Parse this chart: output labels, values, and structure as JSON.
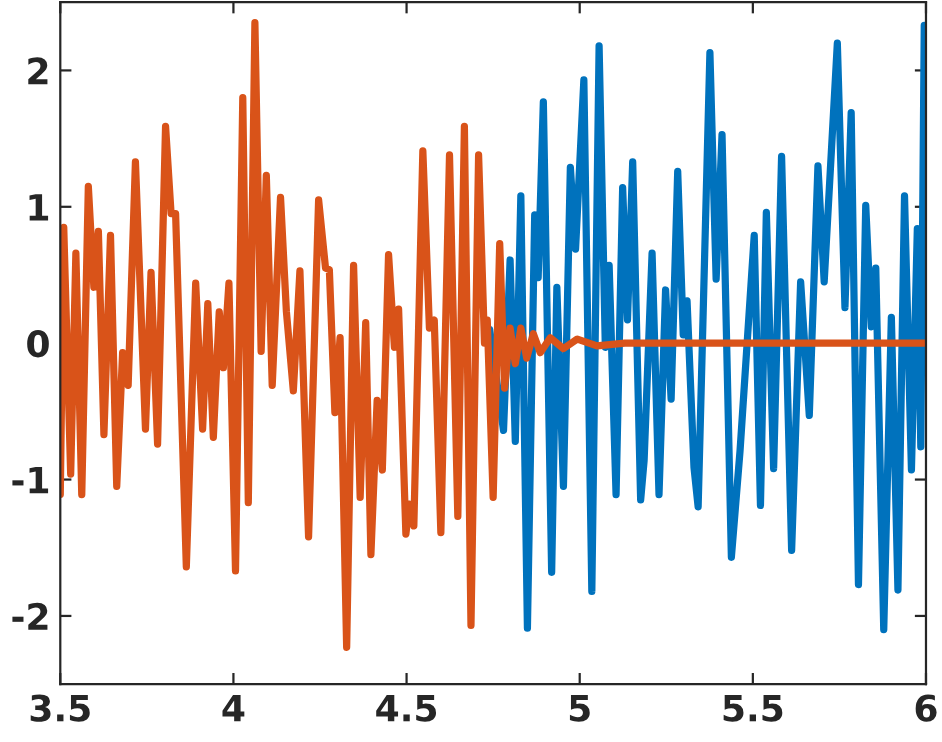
{
  "chart_data": {
    "type": "line",
    "xlim": [
      3.5,
      6
    ],
    "ylim": [
      -2.5,
      2.5
    ],
    "xticks": [
      3.5,
      4,
      4.5,
      5,
      5.5,
      6
    ],
    "yticks": [
      -2,
      -1,
      0,
      1,
      2
    ],
    "grid": false,
    "legend": false,
    "marker": "none",
    "line_style": "solid",
    "series": [
      {
        "color": "#0072bd",
        "x": [
          4.74,
          4.78,
          4.799,
          4.814,
          4.83,
          4.849,
          4.87,
          4.88,
          4.895,
          4.919,
          4.934,
          4.953,
          4.973,
          4.988,
          5.012,
          5.035,
          5.056,
          5.074,
          5.085,
          5.105,
          5.124,
          5.138,
          5.153,
          5.176,
          5.186,
          5.209,
          5.229,
          5.248,
          5.264,
          5.283,
          5.299,
          5.31,
          5.33,
          5.342,
          5.357,
          5.376,
          5.394,
          5.411,
          5.438,
          5.463,
          5.483,
          5.504,
          5.522,
          5.539,
          5.56,
          5.583,
          5.612,
          5.638,
          5.663,
          5.688,
          5.706,
          5.744,
          5.766,
          5.784,
          5.805,
          5.826,
          5.842,
          5.855,
          5.878,
          5.9,
          5.919,
          5.938,
          5.958,
          5.975,
          5.985,
          5.995,
          6.0
        ],
        "values": [
          0.1,
          -0.64,
          0.61,
          -0.72,
          1.08,
          -2.09,
          0.94,
          0.48,
          1.77,
          -1.68,
          0.41,
          -1.05,
          1.29,
          0.69,
          1.93,
          -1.82,
          2.18,
          -0.03,
          0.57,
          -1.11,
          1.14,
          0.17,
          1.33,
          -1.15,
          -0.86,
          0.66,
          -1.11,
          0.39,
          -0.41,
          1.26,
          0.06,
          0.31,
          -0.91,
          -1.2,
          null,
          2.13,
          0.47,
          1.53,
          -1.57,
          -0.79,
          null,
          0.79,
          -1.19,
          0.96,
          -0.92,
          1.37,
          -1.52,
          0.45,
          -0.53,
          1.3,
          0.45,
          2.2,
          0.26,
          1.69,
          -1.77,
          1.01,
          0.12,
          0.55,
          -2.1,
          0.19,
          -1.81,
          1.08,
          -0.93,
          0.84,
          -0.76,
          2.33,
          0.98
        ]
      },
      {
        "color": "#d95319",
        "x": [
          3.5,
          3.51,
          3.53,
          3.545,
          3.562,
          3.581,
          3.597,
          3.61,
          3.626,
          3.645,
          3.663,
          3.68,
          3.696,
          3.717,
          3.746,
          3.762,
          3.781,
          3.804,
          3.82,
          3.833,
          3.864,
          3.891,
          3.911,
          3.926,
          3.942,
          3.959,
          3.971,
          3.987,
          4.006,
          4.027,
          4.043,
          4.062,
          4.08,
          4.095,
          4.112,
          4.136,
          4.153,
          4.173,
          4.192,
          4.217,
          4.246,
          4.266,
          4.277,
          4.293,
          4.308,
          4.327,
          4.347,
          4.366,
          4.382,
          4.397,
          4.415,
          4.43,
          4.448,
          4.465,
          4.477,
          4.498,
          4.508,
          4.521,
          4.547,
          4.566,
          4.58,
          4.599,
          4.624,
          4.648,
          4.667,
          4.686,
          4.708,
          4.725,
          4.733,
          4.75,
          4.769,
          4.783,
          4.799,
          4.814,
          4.83,
          4.847,
          4.866,
          4.886,
          4.915,
          4.953,
          4.993,
          5.05,
          5.13,
          6.0
        ],
        "values": [
          -1.11,
          0.85,
          -0.96,
          0.66,
          -1.11,
          1.15,
          0.41,
          0.82,
          -0.67,
          0.79,
          -1.05,
          -0.07,
          -0.31,
          1.33,
          -0.63,
          0.52,
          -0.74,
          1.59,
          0.95,
          0.95,
          -1.64,
          0.44,
          -0.63,
          0.29,
          -0.69,
          0.23,
          -0.18,
          0.44,
          -1.67,
          1.8,
          -1.17,
          2.35,
          -0.06,
          1.23,
          -0.31,
          1.07,
          0.23,
          -0.35,
          0.53,
          -1.42,
          1.05,
          0.55,
          0.54,
          -0.51,
          0.04,
          -2.23,
          0.57,
          -1.13,
          0.15,
          -1.55,
          -0.42,
          -0.93,
          0.65,
          -0.03,
          0.25,
          -1.4,
          -1.18,
          -1.34,
          1.41,
          0.11,
          0.17,
          -1.39,
          1.38,
          -1.27,
          1.59,
          -2.07,
          1.38,
          0.0,
          0.17,
          -1.13,
          0.73,
          -0.33,
          0.11,
          -0.15,
          0.11,
          -0.11,
          0.07,
          -0.07,
          0.04,
          -0.04,
          0.03,
          -0.02,
          0.0,
          0.0
        ]
      }
    ]
  }
}
